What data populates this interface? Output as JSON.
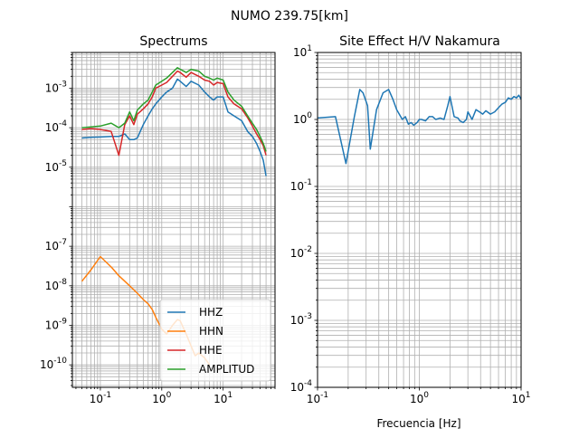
{
  "figure": {
    "suptitle": "NUMO 239.75[km]"
  },
  "colors": {
    "HHZ": "#1f77b4",
    "HHN": "#ff7f0e",
    "HHE": "#d62728",
    "AMPLITUD": "#2ca02c",
    "grid": "#b0b0b0"
  },
  "chart_data": [
    {
      "type": "line",
      "title": "Spectrums",
      "xlabel": "",
      "ylabel": "",
      "xscale": "log",
      "yscale": "log",
      "xlim": [
        0.035,
        70
      ],
      "ylim": [
        2.7e-11,
        0.008
      ],
      "grid": true,
      "legend": "lower-right",
      "xticklabels": [
        "10^-1",
        "10^0",
        "10^1"
      ],
      "yticklabels": [
        "10^-10",
        "10^-9",
        "10^-8",
        "10^-7",
        "10^-5",
        "10^-4",
        "10^-3"
      ],
      "series": [
        {
          "name": "HHZ",
          "x": [
            0.05,
            0.07,
            0.1,
            0.15,
            0.2,
            0.25,
            0.3,
            0.35,
            0.4,
            0.5,
            0.6,
            0.7,
            0.8,
            1.0,
            1.2,
            1.5,
            1.8,
            2.0,
            2.5,
            3.0,
            4.0,
            5.0,
            6.0,
            7.0,
            8.0,
            10,
            12,
            15,
            20,
            25,
            30,
            35,
            40,
            45,
            50
          ],
          "y": [
            5.5e-05,
            5.7e-05,
            5.8e-05,
            6e-05,
            6e-05,
            7e-05,
            5e-05,
            5e-05,
            5.5e-05,
            0.00012,
            0.0002,
            0.0003,
            0.0004,
            0.0006,
            0.0008,
            0.001,
            0.0017,
            0.0015,
            0.0011,
            0.0015,
            0.0012,
            0.0008,
            0.0006,
            0.0005,
            0.0006,
            0.0006,
            0.00025,
            0.0002,
            0.00015,
            8e-05,
            6e-05,
            4e-05,
            2.5e-05,
            1.5e-05,
            6e-06
          ]
        },
        {
          "name": "HHN",
          "x": [
            0.05,
            0.07,
            0.1,
            0.15,
            0.2,
            0.3,
            0.4,
            0.5,
            0.6,
            0.7,
            0.8,
            0.9,
            1.0,
            1.2,
            1.5,
            1.8,
            2.0,
            2.5,
            3.0,
            3.5,
            4.0,
            5.0,
            6.0
          ],
          "y": [
            1.3e-08,
            2.5e-08,
            5.5e-08,
            3e-08,
            1.8e-08,
            1e-08,
            6.5e-09,
            4.5e-09,
            3.5e-09,
            2.5e-09,
            1.6e-09,
            1.1e-09,
            8e-10,
            6e-10,
            1e-09,
            1.4e-09,
            1.3e-09,
            6e-10,
            3e-10,
            1.7e-10,
            2e-10,
            1.5e-10,
            1e-10
          ]
        },
        {
          "name": "HHE",
          "x": [
            0.05,
            0.07,
            0.1,
            0.15,
            0.2,
            0.25,
            0.3,
            0.35,
            0.4,
            0.5,
            0.6,
            0.7,
            0.8,
            1.0,
            1.2,
            1.5,
            1.8,
            2.0,
            2.5,
            3.0,
            4.0,
            5.0,
            6.0,
            7.0,
            8.0,
            10,
            12,
            15,
            20,
            25,
            30,
            35,
            40,
            45,
            50
          ],
          "y": [
            9e-05,
            9.5e-05,
            9e-05,
            8e-05,
            2e-05,
            0.00012,
            0.0002,
            0.00012,
            0.00022,
            0.0003,
            0.0004,
            0.0006,
            0.001,
            0.0012,
            0.0014,
            0.002,
            0.0027,
            0.0025,
            0.0019,
            0.0025,
            0.002,
            0.0016,
            0.0015,
            0.0012,
            0.0014,
            0.0013,
            0.0006,
            0.0004,
            0.0003,
            0.00018,
            0.00011,
            7e-05,
            5e-05,
            3.5e-05,
            2e-05
          ]
        },
        {
          "name": "AMPLITUD",
          "x": [
            0.05,
            0.07,
            0.1,
            0.15,
            0.2,
            0.25,
            0.3,
            0.35,
            0.4,
            0.5,
            0.6,
            0.7,
            0.8,
            1.0,
            1.2,
            1.5,
            1.8,
            2.0,
            2.5,
            3.0,
            4.0,
            5.0,
            6.0,
            7.0,
            8.0,
            10,
            12,
            15,
            20,
            25,
            30,
            35,
            40,
            45,
            50
          ],
          "y": [
            0.0001,
            0.000105,
            0.00011,
            0.00013,
            0.0001,
            0.00013,
            0.00025,
            0.00015,
            0.00028,
            0.0004,
            0.0005,
            0.0008,
            0.0012,
            0.0015,
            0.0018,
            0.0025,
            0.0033,
            0.003,
            0.0025,
            0.003,
            0.0027,
            0.002,
            0.0018,
            0.0016,
            0.0018,
            0.0016,
            0.0008,
            0.0005,
            0.00035,
            0.0002,
            0.00013,
            9e-05,
            6e-05,
            4e-05,
            2.5e-05
          ]
        }
      ]
    },
    {
      "type": "line",
      "title": "Site Effect H/V Nakamura",
      "xlabel": "Frecuencia [Hz]",
      "ylabel": "",
      "xscale": "log",
      "yscale": "log",
      "xlim": [
        0.1,
        10
      ],
      "ylim": [
        0.0001,
        10
      ],
      "grid": true,
      "xticklabels": [
        "10^-1",
        "10^0",
        "10^1"
      ],
      "yticklabels": [
        "10^-4",
        "10^-3",
        "10^-2",
        "10^-1",
        "10^0",
        "10^1"
      ],
      "series": [
        {
          "x": [
            0.1,
            0.15,
            0.19,
            0.23,
            0.26,
            0.28,
            0.31,
            0.33,
            0.38,
            0.44,
            0.5,
            0.55,
            0.6,
            0.68,
            0.73,
            0.78,
            0.83,
            0.88,
            0.95,
            1.0,
            1.05,
            1.15,
            1.25,
            1.35,
            1.45,
            1.6,
            1.75,
            1.9,
            2.0,
            2.2,
            2.4,
            2.5,
            2.7,
            2.9,
            3.0,
            3.3,
            3.6,
            3.9,
            4.2,
            4.5,
            5.0,
            5.5,
            6.0,
            6.5,
            7.0,
            7.5,
            8.0,
            8.5,
            9.0,
            9.5,
            10.0
          ],
          "y": [
            1.05,
            1.1,
            0.22,
            1.1,
            2.8,
            2.5,
            1.6,
            0.36,
            1.4,
            2.5,
            2.8,
            2.0,
            1.4,
            1.0,
            1.1,
            0.85,
            0.9,
            0.82,
            0.9,
            1.0,
            1.0,
            0.95,
            1.1,
            1.1,
            1.0,
            1.05,
            1.0,
            1.6,
            2.2,
            1.1,
            1.05,
            0.95,
            0.9,
            1.0,
            1.3,
            1.0,
            1.4,
            1.3,
            1.2,
            1.35,
            1.2,
            1.3,
            1.5,
            1.7,
            1.8,
            2.1,
            2.0,
            2.2,
            2.1,
            2.3,
            2.0
          ]
        }
      ]
    }
  ]
}
